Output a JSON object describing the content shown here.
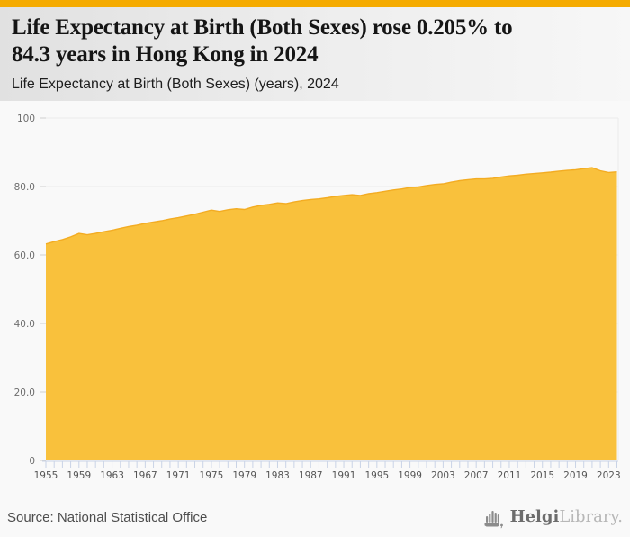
{
  "page": {
    "accent_color": "#F5AB00",
    "background_color": "#f9f9f9"
  },
  "header": {
    "title": "Life Expectancy at Birth (Both Sexes) rose 0.205% to 84.3 years in Hong Kong in 2024",
    "title_lines": [
      "Life Expectancy at Birth (Both Sexes) rose 0.205% to",
      "84.3 years in Hong Kong in 2024"
    ],
    "subtitle": "Life Expectancy at Birth (Both Sexes) (years), 2024"
  },
  "footer": {
    "source": "Source: National Statistical Office",
    "logo": {
      "icon": "helgi-organ-icon",
      "brand_bold": "Helgi",
      "brand_light": "Library."
    }
  },
  "chart_data": {
    "type": "area",
    "title": "Life Expectancy at Birth (Both Sexes) rose 0.205% to 84.3 years in Hong Kong in 2024",
    "subtitle": "Life Expectancy at Birth (Both Sexes) (years), 2024",
    "series_name": "Life Expectancy at Birth (Both Sexes), years, Hong Kong",
    "x": [
      1955,
      1956,
      1957,
      1958,
      1959,
      1960,
      1961,
      1962,
      1963,
      1964,
      1965,
      1966,
      1967,
      1968,
      1969,
      1970,
      1971,
      1972,
      1973,
      1974,
      1975,
      1976,
      1977,
      1978,
      1979,
      1980,
      1981,
      1982,
      1983,
      1984,
      1985,
      1986,
      1987,
      1988,
      1989,
      1990,
      1991,
      1992,
      1993,
      1994,
      1995,
      1996,
      1997,
      1998,
      1999,
      2000,
      2001,
      2002,
      2003,
      2004,
      2005,
      2006,
      2007,
      2008,
      2009,
      2010,
      2011,
      2012,
      2013,
      2014,
      2015,
      2016,
      2017,
      2018,
      2019,
      2020,
      2021,
      2022,
      2023,
      2024
    ],
    "values": [
      63.2,
      63.9,
      64.5,
      65.3,
      66.3,
      65.9,
      66.3,
      66.8,
      67.2,
      67.8,
      68.3,
      68.7,
      69.2,
      69.6,
      70.0,
      70.5,
      70.9,
      71.4,
      71.9,
      72.5,
      73.1,
      72.7,
      73.2,
      73.5,
      73.3,
      74.0,
      74.5,
      74.8,
      75.2,
      75.0,
      75.5,
      75.9,
      76.2,
      76.4,
      76.7,
      77.1,
      77.4,
      77.6,
      77.4,
      77.9,
      78.2,
      78.6,
      79.0,
      79.3,
      79.7,
      79.9,
      80.3,
      80.6,
      80.8,
      81.3,
      81.7,
      82.0,
      82.2,
      82.2,
      82.4,
      82.8,
      83.1,
      83.3,
      83.6,
      83.8,
      84.0,
      84.2,
      84.5,
      84.7,
      84.9,
      85.2,
      85.5,
      84.6,
      84.1,
      84.3
    ],
    "last_value": 84.3,
    "change_pct": "0.205%",
    "ylim": [
      0,
      100
    ],
    "yticks": [
      {
        "value": 0,
        "label": "0"
      },
      {
        "value": 20,
        "label": "20.0"
      },
      {
        "value": 40,
        "label": "40.0"
      },
      {
        "value": 60,
        "label": "60.0"
      },
      {
        "value": 80,
        "label": "80.0"
      },
      {
        "value": 100,
        "label": "100"
      }
    ],
    "x_tick_labels": [
      1955,
      1959,
      1963,
      1967,
      1971,
      1975,
      1979,
      1983,
      1987,
      1991,
      1995,
      1999,
      2003,
      2007,
      2011,
      2015,
      2019,
      2023
    ],
    "grid": true,
    "legend": "none",
    "fill_color": "#F9C13C",
    "line_color": "#F3AC22",
    "gridline_color": "#ececec",
    "x_tick_color": "#c9d3e6",
    "axis_label_color": "#6e6e6e"
  }
}
